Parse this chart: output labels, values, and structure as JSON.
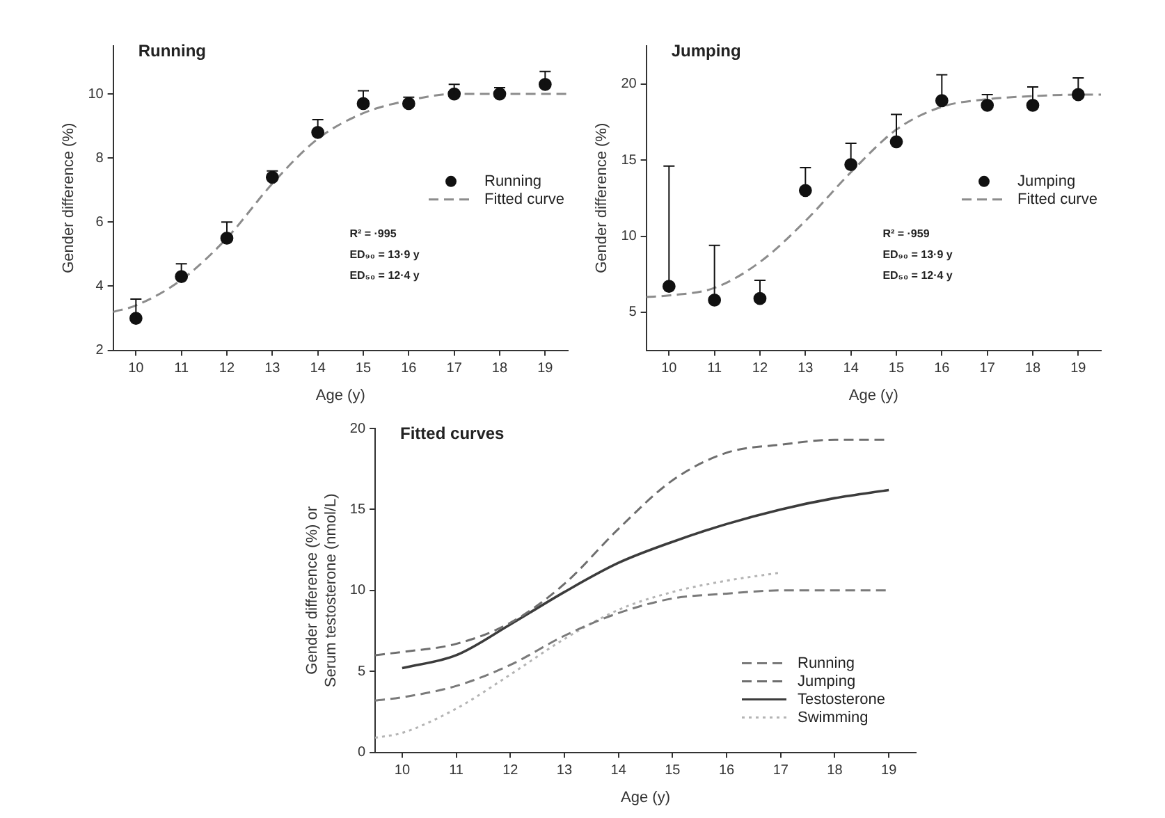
{
  "chart_data": [
    {
      "type": "scatter",
      "title": "Running",
      "xlabel": "Age (y)",
      "ylabel": "Gender difference (%)",
      "xlim": [
        9.5,
        19.5
      ],
      "xticks": [
        10,
        11,
        12,
        13,
        14,
        15,
        16,
        17,
        18,
        19
      ],
      "ylim": [
        2,
        11.5
      ],
      "yticks": [
        2,
        4,
        6,
        8,
        10
      ],
      "grid": false,
      "legend": "right",
      "annotations": [
        "R² = ·995",
        "ED₉₀ = 13·9 y",
        "ED₅₀ = 12·4 y"
      ],
      "series": [
        {
          "name": "Running",
          "type": "scatter",
          "color": "#111111",
          "marker": "circle",
          "x": [
            10,
            11,
            12,
            13,
            14,
            15,
            16,
            17,
            18,
            19
          ],
          "values": [
            3.0,
            4.3,
            5.5,
            7.4,
            8.8,
            9.7,
            9.7,
            10.0,
            10.0,
            10.3
          ],
          "errors": [
            [
              3.0,
              3.6
            ],
            [
              4.3,
              4.7
            ],
            [
              5.5,
              6.0
            ],
            [
              7.4,
              7.6
            ],
            [
              8.8,
              9.2
            ],
            [
              9.7,
              10.1
            ],
            [
              9.7,
              9.9
            ],
            [
              10.0,
              10.3
            ],
            [
              10.0,
              10.2
            ],
            [
              10.3,
              10.7
            ]
          ]
        },
        {
          "name": "Fitted curve",
          "type": "line",
          "color": "#8c8c8c",
          "line_style": "dashed",
          "marker": "none",
          "x": [
            9.5,
            10,
            11,
            12,
            13,
            14,
            15,
            16,
            17,
            18,
            19,
            19.5
          ],
          "values": [
            3.2,
            3.4,
            4.2,
            5.5,
            7.2,
            8.6,
            9.4,
            9.8,
            10.0,
            10.0,
            10.0,
            10.0
          ]
        }
      ]
    },
    {
      "type": "scatter",
      "title": "Jumping",
      "xlabel": "Age (y)",
      "ylabel": "Gender difference (%)",
      "xlim": [
        9.5,
        19.5
      ],
      "xticks": [
        10,
        11,
        12,
        13,
        14,
        15,
        16,
        17,
        18,
        19
      ],
      "ylim": [
        2.5,
        22.5
      ],
      "yticks": [
        5,
        10,
        15,
        20
      ],
      "grid": false,
      "legend": "right",
      "annotations": [
        "R² = ·959",
        "ED₉₀ = 13·9 y",
        "ED₅₀ = 12·4 y"
      ],
      "series": [
        {
          "name": "Jumping",
          "type": "scatter",
          "color": "#111111",
          "marker": "circle",
          "x": [
            10,
            11,
            12,
            13,
            14,
            15,
            16,
            17,
            18,
            19
          ],
          "values": [
            6.7,
            5.8,
            5.9,
            13.0,
            14.7,
            16.2,
            18.9,
            18.6,
            18.6,
            19.3
          ],
          "errors": [
            [
              6.7,
              14.6
            ],
            [
              5.8,
              9.4
            ],
            [
              5.9,
              7.1
            ],
            [
              13.0,
              14.5
            ],
            [
              14.7,
              16.1
            ],
            [
              16.2,
              18.0
            ],
            [
              18.9,
              20.6
            ],
            [
              18.6,
              19.3
            ],
            [
              18.6,
              19.8
            ],
            [
              19.3,
              20.4
            ]
          ]
        },
        {
          "name": "Fitted curve",
          "type": "line",
          "color": "#8c8c8c",
          "line_style": "dashed",
          "marker": "none",
          "x": [
            9.5,
            10,
            11,
            12,
            13,
            14,
            15,
            16,
            17,
            18,
            19,
            19.5
          ],
          "values": [
            6.0,
            6.1,
            6.6,
            8.3,
            11.0,
            14.2,
            17.0,
            18.5,
            19.0,
            19.2,
            19.3,
            19.3
          ]
        }
      ]
    },
    {
      "type": "line",
      "title": "Fitted curves",
      "xlabel": "Age (y)",
      "ylabel": "Gender difference (%) or\nSerum testosterone (nmol/L)",
      "xlim": [
        9.5,
        19.5
      ],
      "xticks": [
        10,
        11,
        12,
        13,
        14,
        15,
        16,
        17,
        18,
        19
      ],
      "ylim": [
        0,
        20
      ],
      "yticks": [
        0,
        5,
        10,
        15,
        20
      ],
      "grid": false,
      "legend": "bottom right",
      "marker": "none",
      "series": [
        {
          "name": "Running",
          "color": "#7a7a7a",
          "line_style": "dashed",
          "x": [
            9.5,
            10,
            11,
            12,
            13,
            14,
            15,
            16,
            17,
            18,
            19
          ],
          "values": [
            3.2,
            3.4,
            4.1,
            5.4,
            7.2,
            8.6,
            9.5,
            9.8,
            10.0,
            10.0,
            10.0
          ]
        },
        {
          "name": "Jumping",
          "color": "#6e6e6e",
          "line_style": "dashed",
          "x": [
            9.5,
            10,
            11,
            12,
            13,
            14,
            15,
            16,
            17,
            18,
            19
          ],
          "values": [
            6.0,
            6.2,
            6.7,
            8.0,
            10.4,
            13.8,
            16.8,
            18.5,
            19.0,
            19.3,
            19.3
          ]
        },
        {
          "name": "Testosterone",
          "color": "#3c3c3c",
          "line_style": "solid",
          "x": [
            10,
            11,
            12,
            13,
            14,
            15,
            16,
            17,
            18,
            19
          ],
          "values": [
            5.2,
            6.0,
            7.9,
            9.9,
            11.7,
            13.0,
            14.1,
            15.0,
            15.7,
            16.2
          ]
        },
        {
          "name": "Swimming",
          "color": "#b4b4b4",
          "line_style": "dotted",
          "x": [
            9.5,
            10,
            11,
            12,
            13,
            14,
            15,
            16,
            17
          ],
          "values": [
            0.9,
            1.2,
            2.7,
            4.8,
            7.0,
            8.8,
            9.9,
            10.6,
            11.1
          ]
        }
      ]
    }
  ]
}
